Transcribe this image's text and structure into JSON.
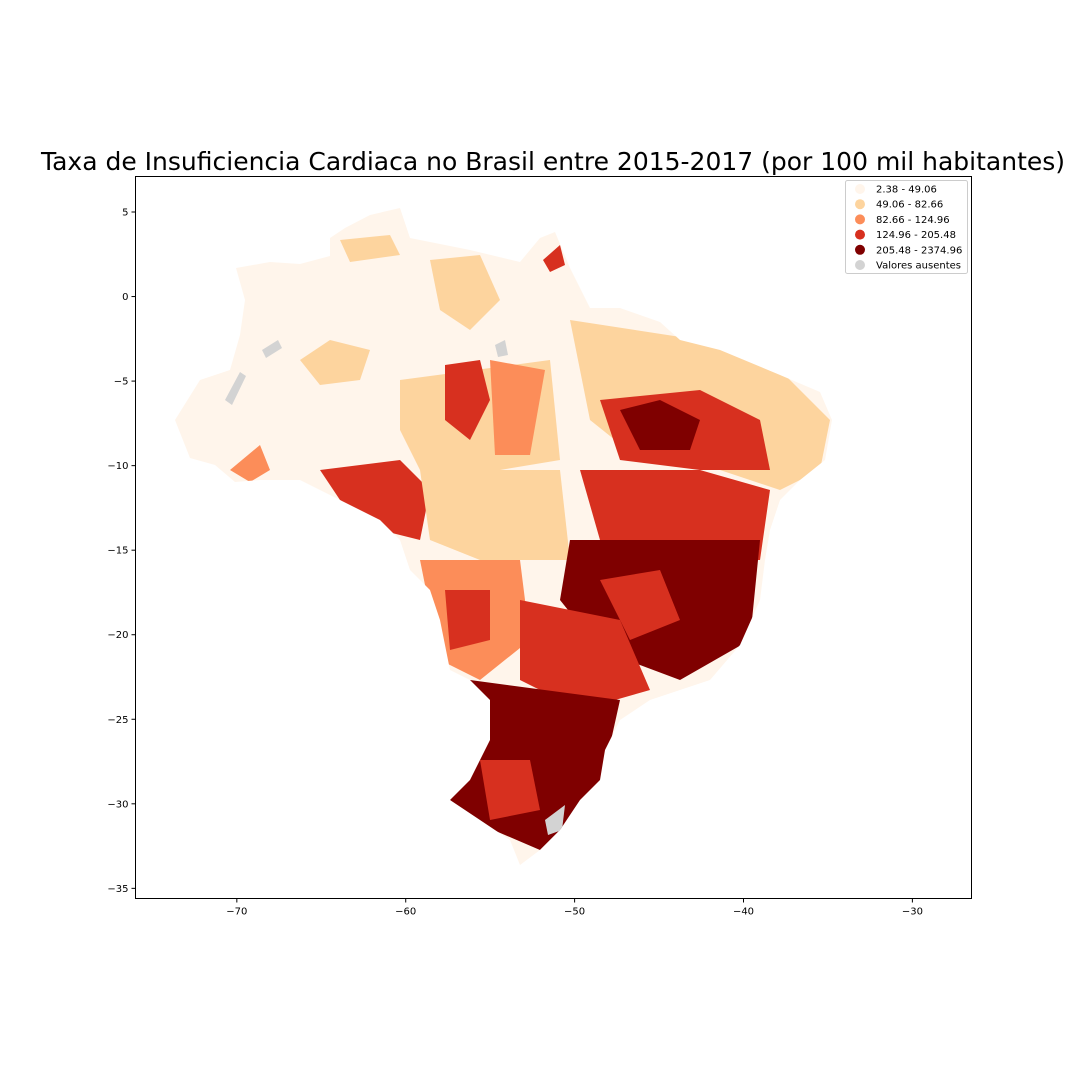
{
  "chart_data": {
    "type": "choropleth",
    "title": "Taxa de Insuficiencia Cardiaca no Brasil entre 2015-2017 (por 100 mil habitantes)",
    "xlabel": "",
    "ylabel": "",
    "xlim": [
      -76,
      -26.5
    ],
    "ylim": [
      -35.6,
      7.1
    ],
    "x_ticks": [
      "−70",
      "−60",
      "−50",
      "−40",
      "−30"
    ],
    "x_tick_values": [
      -70,
      -60,
      -50,
      -40,
      -30
    ],
    "y_ticks": [
      "5",
      "0",
      "−5",
      "−10",
      "−15",
      "−20",
      "−25",
      "−30",
      "−35"
    ],
    "y_tick_values": [
      5,
      0,
      -5,
      -10,
      -15,
      -20,
      -25,
      -30,
      -35
    ],
    "legend_position": "top-right",
    "legend": [
      {
        "label": "2.38 - 49.06",
        "color": "#fff5eb"
      },
      {
        "label": "49.06 - 82.66",
        "color": "#fdd49e"
      },
      {
        "label": "82.66 - 124.96",
        "color": "#fc8d59"
      },
      {
        "label": "124.96 - 205.48",
        "color": "#d7301f"
      },
      {
        "label": "205.48 - 2374.96",
        "color": "#7f0000"
      },
      {
        "label": "Valores ausentes",
        "color": "#d3d3d3"
      }
    ],
    "grid": false
  }
}
